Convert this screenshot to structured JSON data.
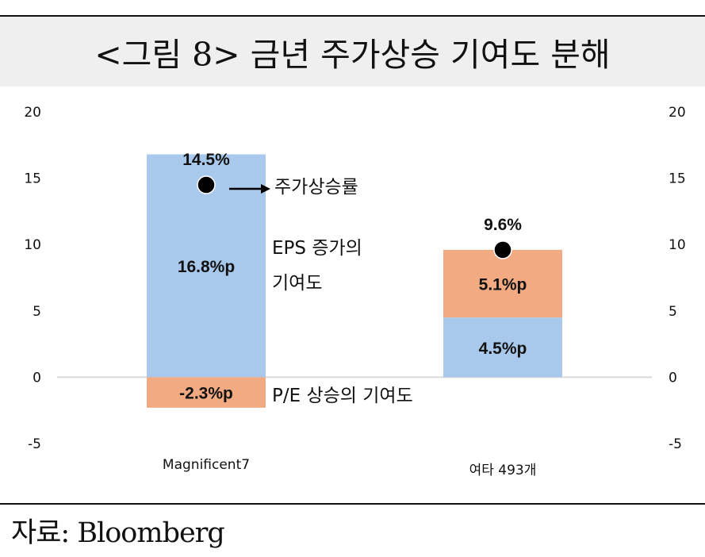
{
  "title": "<그림 8> 금년 주가상승 기여도 분해",
  "source": "자료: Bloomberg",
  "colors": {
    "eps": "#a9c9ec",
    "pe": "#f1aa82",
    "marker": "#000000",
    "axis": "#d9d9d9"
  },
  "chart_data": {
    "type": "bar",
    "stacked": true,
    "categories": [
      "Magnificent7",
      "여타 493개"
    ],
    "ylim": [
      -5,
      20
    ],
    "yticks": [
      20,
      15,
      10,
      5,
      0,
      -5
    ],
    "right_axis": true,
    "grid": false,
    "series": [
      {
        "name": "EPS 증가의 기여도",
        "values": [
          16.8,
          4.5
        ],
        "labels": [
          "16.8%p",
          "4.5%p"
        ]
      },
      {
        "name": "P/E 상승의 기여도",
        "values": [
          -2.3,
          5.1
        ],
        "labels": [
          "-2.3%p",
          "5.1%p"
        ]
      }
    ],
    "totals": {
      "name": "주가상승률",
      "values": [
        14.5,
        9.6
      ],
      "labels": [
        "14.5%",
        "9.6%"
      ]
    },
    "annotations": {
      "price_rise": "주가상승률",
      "eps_line1": "EPS 증가의",
      "eps_line2": "기여도",
      "pe": "P/E 상승의 기여도"
    }
  }
}
